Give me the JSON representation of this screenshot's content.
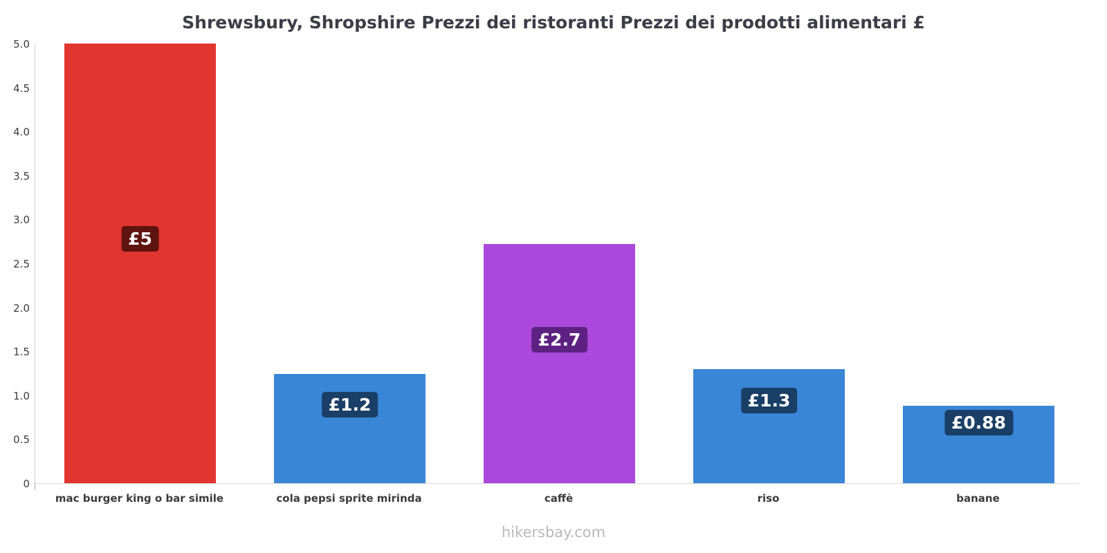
{
  "title": "Shrewsbury, Shropshire Prezzi dei ristoranti Prezzi dei prodotti alimentari £",
  "footer": "hikersbay.com",
  "chart_data": {
    "type": "bar",
    "title": "Shrewsbury, Shropshire Prezzi dei ristoranti Prezzi dei prodotti alimentari £",
    "categories": [
      "mac burger king o bar simile",
      "cola pepsi sprite mirinda",
      "caffè",
      "riso",
      "banane"
    ],
    "values": [
      5,
      1.24,
      2.72,
      1.3,
      0.88
    ],
    "bar_labels": [
      "£5",
      "£1.2",
      "£2.7",
      "£1.3",
      "£0.88"
    ],
    "bar_colors": [
      "#e13530",
      "#3985d6",
      "#ab49dc",
      "#3985d6",
      "#3985d6"
    ],
    "label_bg_colors": [
      "#5f130e",
      "#1a3f66",
      "#5d2181",
      "#1a3f66",
      "#1a3f66"
    ],
    "currency": "£",
    "xlabel": "",
    "ylabel": "",
    "ylim": [
      0,
      5
    ],
    "ytick_values": [
      0,
      0.5,
      1,
      1.5,
      2,
      2.5,
      3,
      3.5,
      4,
      4.5,
      5
    ],
    "ytick_labels": [
      "0",
      "0.5",
      "1.0",
      "1.5",
      "2.0",
      "2.5",
      "3.0",
      "3.5",
      "4.0",
      "4.5",
      "5.0"
    ],
    "grid": false,
    "legend": false
  }
}
